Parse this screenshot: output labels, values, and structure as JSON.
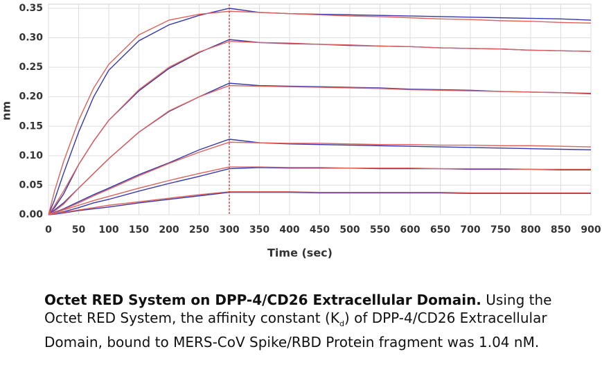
{
  "chart_data": {
    "type": "line",
    "xlabel": "Time (sec)",
    "ylabel": "nm",
    "x": [
      0,
      10,
      25,
      50,
      75,
      100,
      150,
      200,
      250,
      300,
      350,
      400,
      450,
      500,
      550,
      600,
      650,
      700,
      750,
      800,
      850,
      900
    ],
    "series": [
      {
        "color": "#3535b0",
        "values": [
          0,
          0.025,
          0.07,
          0.14,
          0.2,
          0.245,
          0.295,
          0.322,
          0.338,
          0.35,
          0.343,
          0.341,
          0.34,
          0.339,
          0.338,
          0.337,
          0.336,
          0.335,
          0.334,
          0.333,
          0.332,
          0.33
        ]
      },
      {
        "color": "#3535b0",
        "values": [
          0,
          0.012,
          0.035,
          0.085,
          0.125,
          0.16,
          0.21,
          0.248,
          0.275,
          0.297,
          0.292,
          0.29,
          0.289,
          0.287,
          0.286,
          0.285,
          0.283,
          0.282,
          0.281,
          0.279,
          0.278,
          0.277
        ]
      },
      {
        "color": "#3535b0",
        "values": [
          0,
          0.008,
          0.02,
          0.045,
          0.07,
          0.095,
          0.14,
          0.175,
          0.2,
          0.223,
          0.219,
          0.218,
          0.217,
          0.216,
          0.215,
          0.213,
          0.212,
          0.211,
          0.209,
          0.208,
          0.207,
          0.205
        ]
      },
      {
        "color": "#3535b0",
        "values": [
          0,
          0.004,
          0.01,
          0.022,
          0.034,
          0.045,
          0.068,
          0.088,
          0.11,
          0.128,
          0.122,
          0.12,
          0.119,
          0.118,
          0.117,
          0.116,
          0.115,
          0.114,
          0.113,
          0.112,
          0.111,
          0.11
        ]
      },
      {
        "color": "#3535b0",
        "values": [
          0,
          0.002,
          0.005,
          0.012,
          0.02,
          0.026,
          0.04,
          0.053,
          0.065,
          0.078,
          0.08,
          0.079,
          0.079,
          0.079,
          0.078,
          0.078,
          0.078,
          0.077,
          0.077,
          0.077,
          0.076,
          0.076
        ]
      },
      {
        "color": "#3535b0",
        "values": [
          0,
          0.001,
          0.003,
          0.007,
          0.01,
          0.013,
          0.02,
          0.026,
          0.032,
          0.038,
          0.038,
          0.038,
          0.037,
          0.037,
          0.037,
          0.037,
          0.037,
          0.036,
          0.036,
          0.036,
          0.036,
          0.036
        ]
      },
      {
        "color": "#e0605a",
        "values": [
          0,
          0.04,
          0.09,
          0.16,
          0.215,
          0.255,
          0.305,
          0.33,
          0.34,
          0.345,
          0.343,
          0.341,
          0.339,
          0.337,
          0.336,
          0.334,
          0.332,
          0.331,
          0.329,
          0.328,
          0.326,
          0.325
        ]
      },
      {
        "color": "#e0605a",
        "values": [
          0,
          0.015,
          0.04,
          0.085,
          0.125,
          0.16,
          0.212,
          0.25,
          0.276,
          0.294,
          0.292,
          0.291,
          0.289,
          0.288,
          0.286,
          0.285,
          0.283,
          0.282,
          0.281,
          0.279,
          0.278,
          0.277
        ]
      },
      {
        "color": "#e0605a",
        "values": [
          0,
          0.006,
          0.018,
          0.045,
          0.07,
          0.095,
          0.14,
          0.176,
          0.2,
          0.219,
          0.218,
          0.217,
          0.216,
          0.215,
          0.214,
          0.212,
          0.211,
          0.21,
          0.209,
          0.208,
          0.207,
          0.206
        ]
      },
      {
        "color": "#e0605a",
        "values": [
          0,
          0.003,
          0.009,
          0.02,
          0.032,
          0.043,
          0.066,
          0.087,
          0.106,
          0.123,
          0.122,
          0.121,
          0.121,
          0.12,
          0.119,
          0.119,
          0.118,
          0.118,
          0.117,
          0.117,
          0.116,
          0.115
        ]
      },
      {
        "color": "#e0605a",
        "values": [
          0,
          0.003,
          0.008,
          0.016,
          0.024,
          0.031,
          0.045,
          0.058,
          0.07,
          0.081,
          0.081,
          0.08,
          0.08,
          0.079,
          0.079,
          0.079,
          0.078,
          0.078,
          0.078,
          0.077,
          0.077,
          0.077
        ]
      },
      {
        "color": "#e0605a",
        "values": [
          0,
          0.002,
          0.004,
          0.008,
          0.012,
          0.016,
          0.022,
          0.028,
          0.034,
          0.039,
          0.039,
          0.039,
          0.038,
          0.038,
          0.038,
          0.038,
          0.038,
          0.037,
          0.037,
          0.037,
          0.037,
          0.037
        ]
      }
    ],
    "xlim": [
      0,
      900
    ],
    "xticks": [
      0,
      50,
      100,
      150,
      200,
      250,
      300,
      350,
      400,
      450,
      500,
      550,
      600,
      650,
      700,
      750,
      800,
      850,
      900
    ],
    "ylim": [
      0,
      0.35
    ],
    "yticks": [
      {
        "value": 0,
        "label": "0.00"
      },
      0.05,
      {
        "value": 0.1,
        "label": "0.10"
      },
      0.15,
      {
        "value": 0.2,
        "label": "0.20"
      },
      0.25,
      {
        "value": 0.3,
        "label": "0.30"
      },
      0.35
    ],
    "grid": true,
    "vline": {
      "x": 300,
      "color": "#b03030"
    }
  },
  "caption": {
    "bold": "Octet RED System on DPP-4/CD26 Extracellular Domain.",
    "text": " Using the Octet RED System, the affinity constant (K",
    "sub": "d",
    "text2": ") of DPP-4/CD26 Extracellular Domain, bound to MERS-CoV Spike/RBD Protein fragment was 1.04 nM."
  }
}
